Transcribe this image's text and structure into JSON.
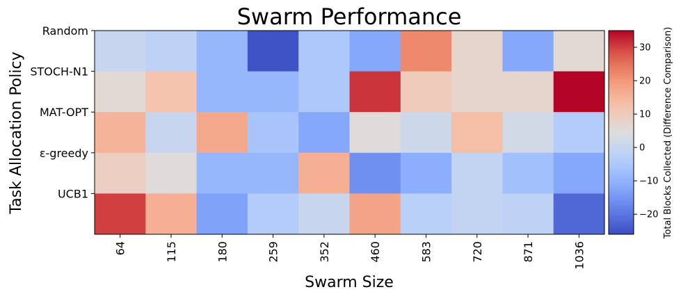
{
  "chart_data": {
    "type": "heatmap",
    "title": "Swarm Performance",
    "xlabel": "Swarm Size",
    "ylabel": "Task Allocation Policy",
    "x_categories": [
      "64",
      "115",
      "180",
      "259",
      "352",
      "460",
      "583",
      "720",
      "871",
      "1036"
    ],
    "y_categories": [
      "Random",
      "STOCH-N1",
      "MAT-OPT",
      "ε-greedy",
      "UCB1"
    ],
    "values": [
      [
        0,
        -2,
        -9,
        -25,
        -5,
        -12,
        22,
        7,
        -12,
        6
      ],
      [
        6,
        12,
        -9,
        -9,
        -5,
        31,
        10,
        7,
        7,
        35
      ],
      [
        15,
        0,
        17,
        -6,
        -12,
        5,
        1,
        13,
        2,
        -4
      ],
      [
        9,
        5,
        -9,
        -9,
        16,
        -16,
        -11,
        -1,
        -7,
        -12
      ],
      [
        30,
        16,
        -13,
        -4,
        0,
        18,
        -3,
        -1,
        -2,
        -22
      ]
    ],
    "colorbar": {
      "label": "Total Blocks Collected (Difference Comparison)",
      "ticks": [
        -20,
        -10,
        0,
        10,
        20,
        30
      ],
      "range": [
        -26,
        35
      ],
      "colormap": "coolwarm"
    },
    "grid": false
  }
}
